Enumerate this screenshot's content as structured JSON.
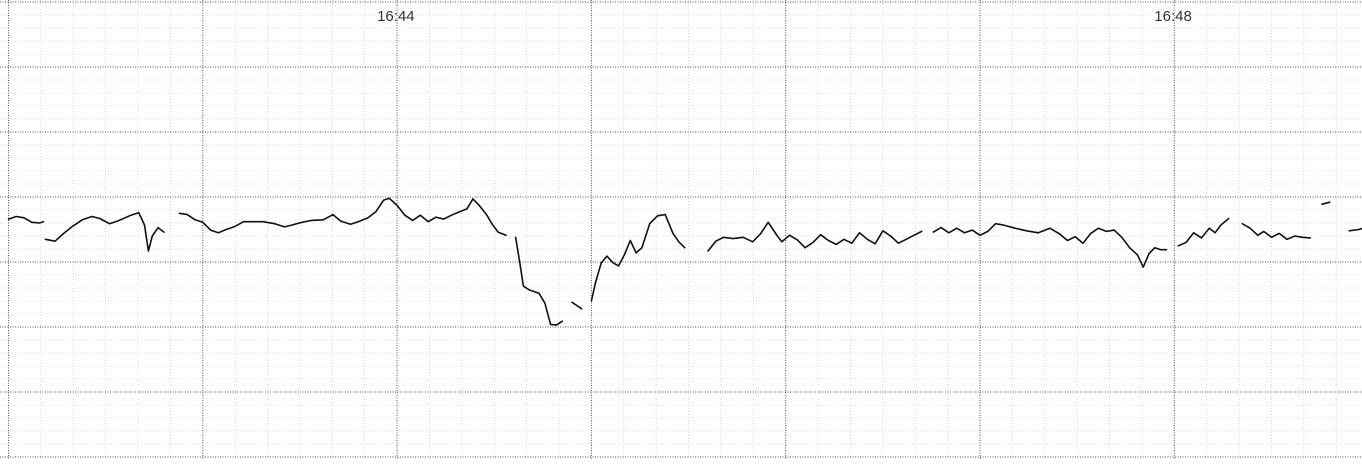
{
  "chart_data": {
    "type": "line",
    "title": "",
    "xlabel": "",
    "ylabel": "",
    "time_labels": [
      "16:44",
      "16:48"
    ],
    "x_unit": "minutes",
    "x_range": [
      0,
      7
    ],
    "y_range": [
      0,
      7
    ],
    "grid": true,
    "line_color": "#111111",
    "grid_color": "#555555",
    "segments": [
      [
        [
          0.0,
          3.66
        ],
        [
          0.04,
          3.7
        ],
        [
          0.08,
          3.68
        ],
        [
          0.12,
          3.61
        ],
        [
          0.16,
          3.6
        ],
        [
          0.18,
          3.62
        ]
      ],
      [
        [
          0.19,
          3.35
        ],
        [
          0.24,
          3.32
        ],
        [
          0.28,
          3.43
        ],
        [
          0.33,
          3.55
        ],
        [
          0.38,
          3.65
        ],
        [
          0.43,
          3.7
        ],
        [
          0.47,
          3.67
        ],
        [
          0.52,
          3.59
        ],
        [
          0.56,
          3.63
        ],
        [
          0.6,
          3.68
        ],
        [
          0.63,
          3.72
        ],
        [
          0.67,
          3.76
        ],
        [
          0.7,
          3.57
        ],
        [
          0.72,
          3.17
        ],
        [
          0.74,
          3.4
        ],
        [
          0.77,
          3.53
        ],
        [
          0.8,
          3.46
        ]
      ],
      [
        [
          0.88,
          3.75
        ],
        [
          0.92,
          3.73
        ],
        [
          0.96,
          3.65
        ],
        [
          1.0,
          3.61
        ],
        [
          1.04,
          3.49
        ],
        [
          1.08,
          3.45
        ],
        [
          1.12,
          3.5
        ],
        [
          1.16,
          3.54
        ],
        [
          1.21,
          3.62
        ],
        [
          1.26,
          3.62
        ],
        [
          1.31,
          3.62
        ],
        [
          1.37,
          3.59
        ],
        [
          1.42,
          3.54
        ],
        [
          1.46,
          3.57
        ],
        [
          1.51,
          3.61
        ],
        [
          1.56,
          3.64
        ],
        [
          1.62,
          3.65
        ],
        [
          1.67,
          3.73
        ],
        [
          1.71,
          3.63
        ],
        [
          1.76,
          3.58
        ],
        [
          1.8,
          3.62
        ],
        [
          1.85,
          3.68
        ],
        [
          1.89,
          3.77
        ],
        [
          1.93,
          3.95
        ],
        [
          1.96,
          3.98
        ],
        [
          2.0,
          3.87
        ],
        [
          2.04,
          3.72
        ],
        [
          2.08,
          3.64
        ],
        [
          2.12,
          3.72
        ],
        [
          2.16,
          3.62
        ],
        [
          2.2,
          3.69
        ],
        [
          2.24,
          3.66
        ],
        [
          2.28,
          3.72
        ],
        [
          2.32,
          3.77
        ],
        [
          2.36,
          3.82
        ],
        [
          2.39,
          3.97
        ],
        [
          2.42,
          3.88
        ],
        [
          2.46,
          3.73
        ],
        [
          2.49,
          3.58
        ],
        [
          2.52,
          3.46
        ],
        [
          2.56,
          3.41
        ]
      ],
      [
        [
          2.61,
          3.38
        ],
        [
          2.63,
          3.02
        ],
        [
          2.65,
          2.63
        ],
        [
          2.68,
          2.57
        ],
        [
          2.73,
          2.52
        ],
        [
          2.76,
          2.37
        ],
        [
          2.79,
          2.04
        ],
        [
          2.82,
          2.03
        ],
        [
          2.85,
          2.09
        ]
      ],
      [
        [
          2.9,
          2.38
        ],
        [
          2.95,
          2.28
        ]
      ],
      [
        [
          3.0,
          2.4
        ],
        [
          3.02,
          2.67
        ],
        [
          3.05,
          2.98
        ],
        [
          3.08,
          3.09
        ],
        [
          3.11,
          2.99
        ],
        [
          3.14,
          2.94
        ],
        [
          3.17,
          3.11
        ],
        [
          3.2,
          3.33
        ],
        [
          3.23,
          3.14
        ],
        [
          3.26,
          3.22
        ],
        [
          3.3,
          3.59
        ],
        [
          3.34,
          3.71
        ],
        [
          3.38,
          3.73
        ],
        [
          3.42,
          3.44
        ],
        [
          3.45,
          3.31
        ],
        [
          3.48,
          3.22
        ]
      ],
      [
        [
          3.6,
          3.17
        ],
        [
          3.64,
          3.32
        ],
        [
          3.68,
          3.38
        ],
        [
          3.73,
          3.36
        ],
        [
          3.78,
          3.38
        ],
        [
          3.83,
          3.31
        ],
        [
          3.87,
          3.43
        ],
        [
          3.91,
          3.61
        ],
        [
          3.95,
          3.43
        ],
        [
          3.98,
          3.31
        ],
        [
          4.02,
          3.41
        ],
        [
          4.06,
          3.34
        ],
        [
          4.1,
          3.22
        ],
        [
          4.14,
          3.3
        ],
        [
          4.18,
          3.42
        ],
        [
          4.22,
          3.33
        ],
        [
          4.26,
          3.27
        ],
        [
          4.3,
          3.35
        ],
        [
          4.34,
          3.29
        ],
        [
          4.38,
          3.45
        ],
        [
          4.42,
          3.35
        ],
        [
          4.46,
          3.28
        ],
        [
          4.5,
          3.48
        ],
        [
          4.54,
          3.4
        ],
        [
          4.58,
          3.29
        ],
        [
          4.62,
          3.35
        ],
        [
          4.66,
          3.41
        ],
        [
          4.7,
          3.47
        ]
      ],
      [
        [
          4.76,
          3.46
        ],
        [
          4.8,
          3.53
        ],
        [
          4.84,
          3.45
        ],
        [
          4.88,
          3.52
        ],
        [
          4.92,
          3.45
        ],
        [
          4.96,
          3.49
        ],
        [
          5.0,
          3.41
        ],
        [
          5.04,
          3.47
        ],
        [
          5.08,
          3.59
        ],
        [
          5.12,
          3.57
        ],
        [
          5.18,
          3.52
        ],
        [
          5.24,
          3.48
        ],
        [
          5.3,
          3.45
        ],
        [
          5.36,
          3.52
        ],
        [
          5.41,
          3.43
        ],
        [
          5.45,
          3.33
        ],
        [
          5.49,
          3.39
        ],
        [
          5.53,
          3.29
        ],
        [
          5.57,
          3.44
        ],
        [
          5.61,
          3.52
        ],
        [
          5.65,
          3.47
        ],
        [
          5.69,
          3.49
        ],
        [
          5.73,
          3.38
        ],
        [
          5.77,
          3.22
        ],
        [
          5.81,
          3.11
        ],
        [
          5.84,
          2.92
        ],
        [
          5.87,
          3.13
        ],
        [
          5.9,
          3.22
        ],
        [
          5.93,
          3.19
        ],
        [
          5.96,
          3.19
        ]
      ],
      [
        [
          6.02,
          3.25
        ],
        [
          6.06,
          3.3
        ],
        [
          6.1,
          3.45
        ],
        [
          6.14,
          3.37
        ],
        [
          6.18,
          3.52
        ],
        [
          6.21,
          3.45
        ],
        [
          6.24,
          3.57
        ],
        [
          6.28,
          3.67
        ]
      ],
      [
        [
          6.35,
          3.59
        ],
        [
          6.39,
          3.52
        ],
        [
          6.43,
          3.41
        ],
        [
          6.46,
          3.47
        ],
        [
          6.5,
          3.38
        ],
        [
          6.54,
          3.44
        ],
        [
          6.58,
          3.35
        ],
        [
          6.62,
          3.4
        ],
        [
          6.66,
          3.38
        ],
        [
          6.7,
          3.37
        ]
      ],
      [
        [
          6.76,
          3.89
        ],
        [
          6.8,
          3.92
        ]
      ],
      [
        [
          6.9,
          3.48
        ],
        [
          6.95,
          3.5
        ],
        [
          7.0,
          3.55
        ]
      ]
    ]
  }
}
